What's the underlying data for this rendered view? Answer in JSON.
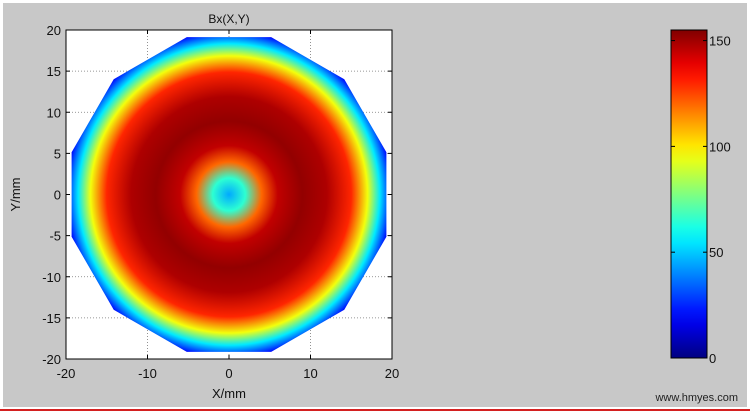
{
  "chart_data": {
    "type": "heatmap",
    "title": "Bx(X,Y)",
    "xlabel": "X/mm",
    "ylabel": "Y/mm",
    "xlim": [
      -20,
      20
    ],
    "ylim": [
      -20,
      20
    ],
    "x_ticks": [
      "-20",
      "-10",
      "0",
      "10",
      "20"
    ],
    "y_ticks": [
      "20",
      "15",
      "10",
      "5",
      "0",
      "-5",
      "-10",
      "-15",
      "-20"
    ],
    "grid": true,
    "colormap": "jet",
    "colorbar": {
      "range": [
        0,
        155
      ],
      "ticks": [
        "150",
        "100",
        "50",
        "0"
      ],
      "position": "right"
    },
    "field": {
      "shape": "dodecagon",
      "radius_mm": 20,
      "radial_profile": [
        {
          "r_mm": 0,
          "value": 45
        },
        {
          "r_mm": 2,
          "value": 65
        },
        {
          "r_mm": 4,
          "value": 120
        },
        {
          "r_mm": 6,
          "value": 145
        },
        {
          "r_mm": 9,
          "value": 152
        },
        {
          "r_mm": 12,
          "value": 148
        },
        {
          "r_mm": 15,
          "value": 130
        },
        {
          "r_mm": 17,
          "value": 95
        },
        {
          "r_mm": 18.5,
          "value": 55
        },
        {
          "r_mm": 20,
          "value": 20
        }
      ]
    }
  },
  "watermark": "www.hmyes.com"
}
